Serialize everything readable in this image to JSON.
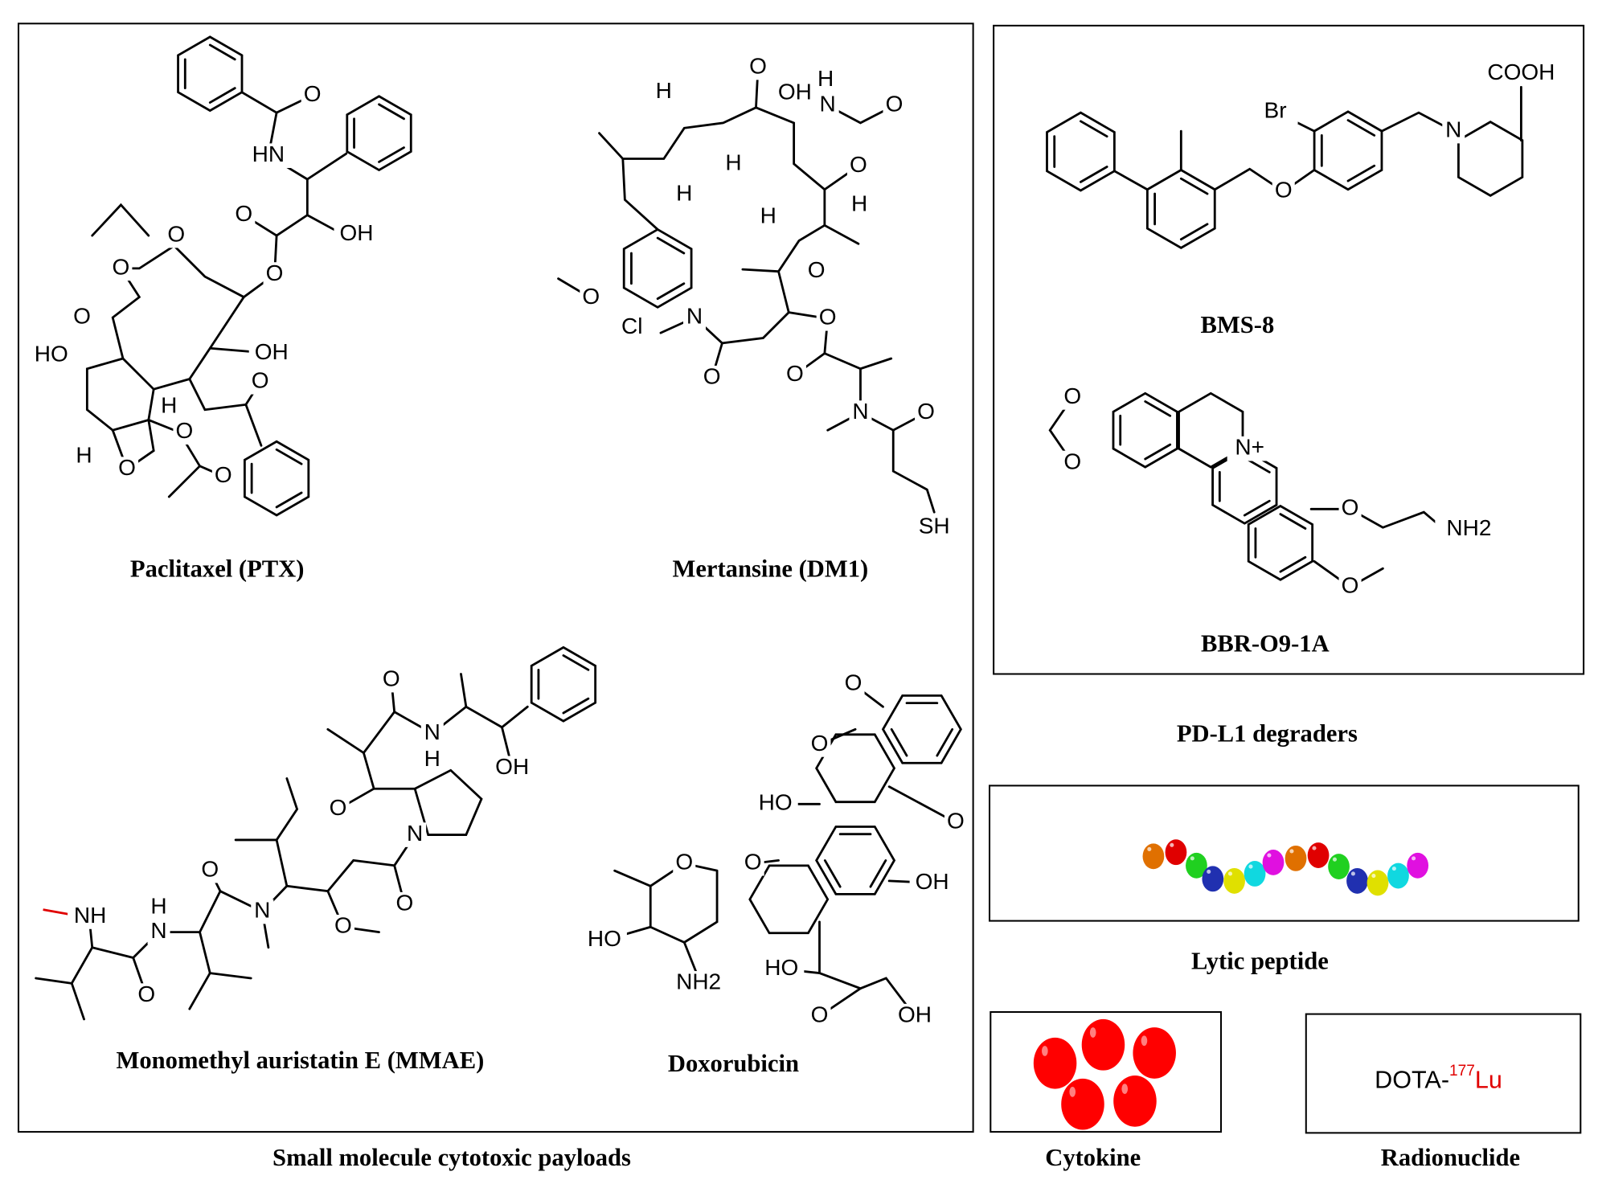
{
  "payloads": {
    "caption": "Small molecule cytotoxic payloads",
    "molecules": [
      {
        "name": "Paclitaxel (PTX)",
        "atoms": [
          {
            "t": "O"
          },
          {
            "t": "HN"
          },
          {
            "t": "O"
          },
          {
            "t": "OH",
            "color": "#e00000"
          },
          {
            "t": "O"
          },
          {
            "t": "O"
          },
          {
            "t": "O"
          },
          {
            "t": "O"
          },
          {
            "t": "HO"
          },
          {
            "t": "OH"
          },
          {
            "t": "H"
          },
          {
            "t": "O"
          },
          {
            "t": "O"
          },
          {
            "t": "H"
          },
          {
            "t": "O"
          },
          {
            "t": "O"
          }
        ]
      },
      {
        "name": "Mertansine (DM1)",
        "atoms": [
          {
            "t": "O"
          },
          {
            "t": "OH"
          },
          {
            "t": "H"
          },
          {
            "t": "N"
          },
          {
            "t": "O"
          },
          {
            "t": "O"
          },
          {
            "t": "H"
          },
          {
            "t": "H"
          },
          {
            "t": "H"
          },
          {
            "t": "H"
          },
          {
            "t": "H"
          },
          {
            "t": "O"
          },
          {
            "t": "O"
          },
          {
            "t": "Cl"
          },
          {
            "t": "N"
          },
          {
            "t": "O"
          },
          {
            "t": "O"
          },
          {
            "t": "O"
          },
          {
            "t": "N"
          },
          {
            "t": "O"
          },
          {
            "t": "SH",
            "color": "#e00000"
          }
        ]
      },
      {
        "name": "Monomethyl auristatin E (MMAE)",
        "atoms": [
          {
            "t": "O"
          },
          {
            "t": "N"
          },
          {
            "t": "H"
          },
          {
            "t": "OH"
          },
          {
            "t": "O"
          },
          {
            "t": "N"
          },
          {
            "t": "O"
          },
          {
            "t": "O"
          },
          {
            "t": "H"
          },
          {
            "t": "N"
          },
          {
            "t": "NH"
          },
          {
            "t": "N"
          },
          {
            "t": "O"
          },
          {
            "t": "O"
          }
        ]
      },
      {
        "name": "Doxorubicin",
        "atoms": [
          {
            "t": "O"
          },
          {
            "t": "O"
          },
          {
            "t": "O"
          },
          {
            "t": "HO"
          },
          {
            "t": "OH"
          },
          {
            "t": "O"
          },
          {
            "t": "O"
          },
          {
            "t": "HO"
          },
          {
            "t": "NH2",
            "color": "#e00000"
          },
          {
            "t": "HO"
          },
          {
            "t": "O"
          },
          {
            "t": "OH",
            "color": "#e00000"
          }
        ]
      }
    ]
  },
  "pdl1": {
    "caption": "PD-L1 degraders",
    "molecules": [
      {
        "name": "BMS-8",
        "atoms": [
          {
            "t": "Br"
          },
          {
            "t": "COOH",
            "color": "#e00000"
          },
          {
            "t": "N"
          },
          {
            "t": "O"
          }
        ]
      },
      {
        "name": "BBR-O9-1A",
        "atoms": [
          {
            "t": "O"
          },
          {
            "t": "O"
          },
          {
            "t": "N+"
          },
          {
            "t": "O"
          },
          {
            "t": "NH2",
            "color": "#e00000"
          },
          {
            "t": "O"
          }
        ]
      }
    ]
  },
  "lytic": {
    "caption": "Lytic peptide",
    "bead_colors": [
      "#e07000",
      "#e00000",
      "#20d020",
      "#2030b0",
      "#e0e000",
      "#10d8e0",
      "#e010e0",
      "#e07000",
      "#e00000",
      "#20d020",
      "#2030b0",
      "#e0e000",
      "#10d8e0",
      "#e010e0"
    ]
  },
  "cytokine": {
    "caption": "Cytokine",
    "color": "#ff0000"
  },
  "radionuclide": {
    "caption": "Radionuclide",
    "prefix": "DOTA-",
    "isotope_mass": "177",
    "element": "Lu",
    "element_color": "#e00000"
  }
}
